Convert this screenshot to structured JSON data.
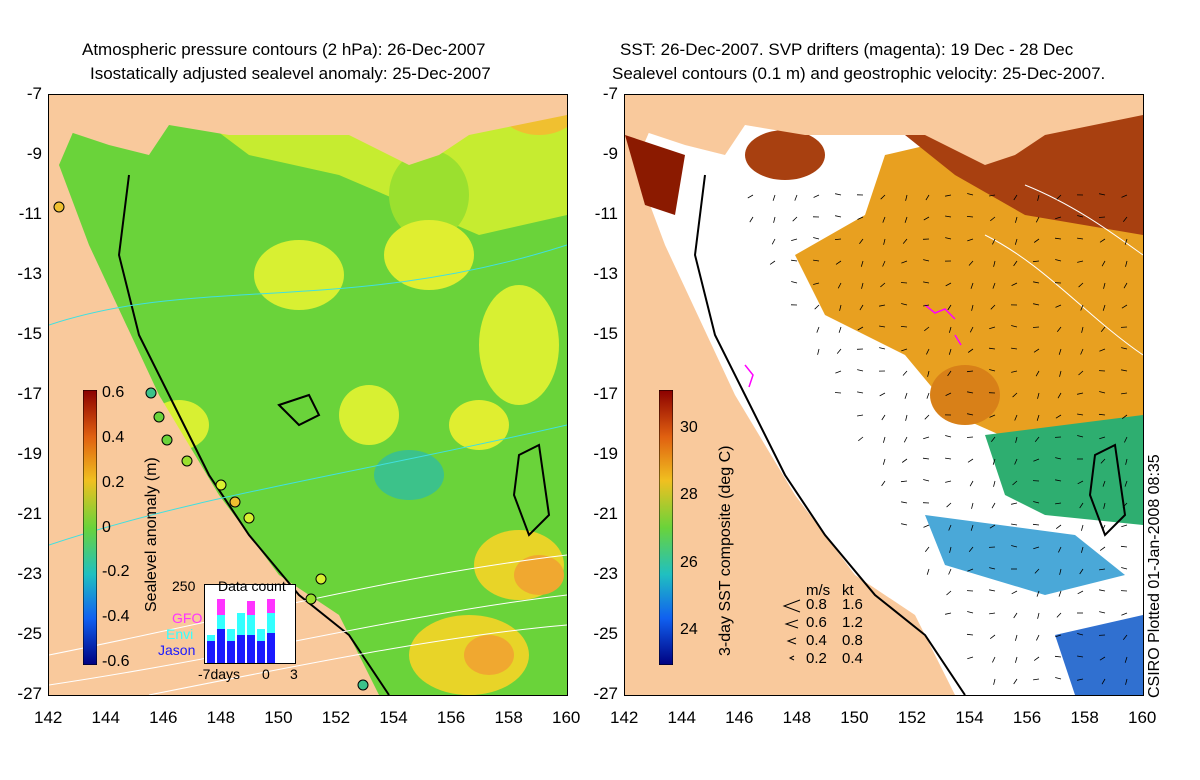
{
  "left_panel": {
    "title_line1": "Atmospheric pressure contours (2 hPa): 26-Dec-2007",
    "title_line2": "Isostatically adjusted sealevel anomaly: 25-Dec-2007",
    "colorbar_label": "Sealevel anomaly (m)",
    "colorbar_ticks": [
      "0.6",
      "0.4",
      "0.2",
      "0",
      "-0.2",
      "-0.4",
      "-0.6"
    ],
    "inset": {
      "title": "Data count",
      "ymax_label": "250",
      "x_labels": [
        "-7days",
        "0",
        "3"
      ],
      "legend": [
        {
          "label": "GFO",
          "color": "#ff33ff"
        },
        {
          "label": "Envi",
          "color": "#33ffff"
        },
        {
          "label": "Jason",
          "color": "#1a1aff"
        }
      ]
    }
  },
  "right_panel": {
    "title_line1": "SST: 26-Dec-2007. SVP drifters (magenta): 19 Dec - 28 Dec",
    "title_line2": "Sealevel contours (0.1 m) and geostrophic velocity: 25-Dec-2007.",
    "colorbar_label": "3-day SST composite (deg C)",
    "colorbar_ticks": [
      "30",
      "28",
      "26",
      "24"
    ],
    "velocity_legend": {
      "header_ms": "m/s",
      "header_kt": "kt",
      "rows": [
        {
          "ms": "0.8",
          "kt": "1.6"
        },
        {
          "ms": "0.6",
          "kt": "1.2"
        },
        {
          "ms": "0.4",
          "kt": "0.8"
        },
        {
          "ms": "0.2",
          "kt": "0.4"
        }
      ]
    },
    "credit": "CSIRO Plotted 01-Jan-2008 08:35"
  },
  "axes": {
    "lat_ticks": [
      "-7",
      "-9",
      "-11",
      "-13",
      "-15",
      "-17",
      "-19",
      "-21",
      "-23",
      "-25",
      "-27"
    ],
    "lon_ticks": [
      "142",
      "144",
      "146",
      "148",
      "150",
      "152",
      "154",
      "156",
      "158",
      "160"
    ]
  },
  "colors": {
    "land": "#f9c99c",
    "sla_green": "#6ad33a",
    "sla_yellow": "#d8f032",
    "sst_orange": "#e8a020",
    "sst_brown": "#a84010"
  }
}
